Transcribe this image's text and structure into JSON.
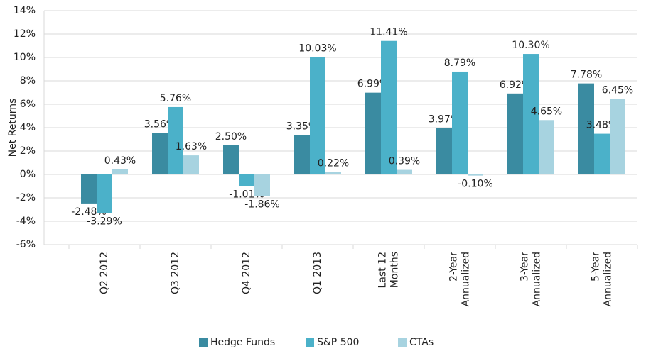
{
  "chart_data": {
    "type": "bar",
    "y_label": "Net Returns",
    "categories": [
      [
        "Q2 2012"
      ],
      [
        "Q3 2012"
      ],
      [
        "Q4 2012"
      ],
      [
        "Q1 2013"
      ],
      [
        "Last 12",
        "Months"
      ],
      [
        "2-Year",
        "Annualized"
      ],
      [
        "3-Year",
        "Annualized"
      ],
      [
        "5-Year",
        "Annualized"
      ]
    ],
    "series": [
      {
        "name": "Hedge Funds",
        "color": "#3a8ba1",
        "values": [
          -2.48,
          3.56,
          2.5,
          3.35,
          6.99,
          3.97,
          6.92,
          7.78
        ],
        "value_labels": [
          "-2.48%",
          "3.56%",
          "2.50%",
          "3.35%",
          "6.99%",
          "3.97%",
          "6.92%",
          "7.78%"
        ]
      },
      {
        "name": "S&P 500",
        "color": "#4bb1c9",
        "values": [
          -3.29,
          5.76,
          -1.01,
          10.03,
          11.41,
          8.79,
          10.3,
          3.48
        ],
        "value_labels": [
          "-3.29%",
          "5.76%",
          "-1.01%",
          "10.03%",
          "11.41%",
          "8.79%",
          "10.30%",
          "3.48%"
        ]
      },
      {
        "name": "CTAs",
        "color": "#a7d3e0",
        "values": [
          0.43,
          1.63,
          -1.86,
          0.22,
          0.39,
          -0.1,
          4.65,
          6.45
        ],
        "value_labels": [
          "0.43%",
          "1.63%",
          "-1.86%",
          "0.22%",
          "0.39%",
          "-0.10%",
          "4.65%",
          "6.45%"
        ]
      }
    ],
    "ylim": [
      -6,
      14
    ],
    "yticks": [
      {
        "value": -6,
        "label": "-6%"
      },
      {
        "value": -4,
        "label": "-4%"
      },
      {
        "value": -2,
        "label": "-2%"
      },
      {
        "value": 0,
        "label": "0%"
      },
      {
        "value": 2,
        "label": "2%"
      },
      {
        "value": 4,
        "label": "4%"
      },
      {
        "value": 6,
        "label": "6%"
      },
      {
        "value": 8,
        "label": "8%"
      },
      {
        "value": 10,
        "label": "10%"
      },
      {
        "value": 12,
        "label": "12%"
      },
      {
        "value": 14,
        "label": "14%"
      }
    ],
    "grid": true,
    "legend": "bottom"
  }
}
